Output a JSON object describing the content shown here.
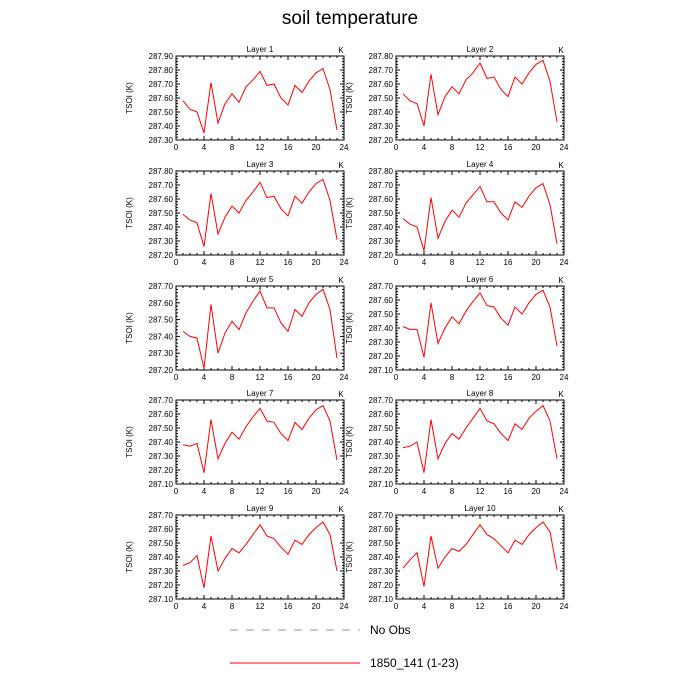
{
  "title": "soil temperature",
  "colors": {
    "model": "#ff0000",
    "obs": "#8c8cd9",
    "axis": "#000000"
  },
  "legend": {
    "placement": "bottom",
    "entries": [
      {
        "label": "No Obs",
        "style": "dashed",
        "color": "#8c8cd9"
      },
      {
        "label": "1850_141 (1-23)",
        "style": "solid",
        "color": "#ff0000"
      }
    ]
  },
  "chart_data": [
    {
      "type": "line",
      "title": "Layer 1",
      "ylabel": "TSOI  (K)",
      "unit": "K",
      "xlim": [
        0,
        24
      ],
      "xticks": [
        0,
        4,
        8,
        12,
        16,
        20,
        24
      ],
      "ylim": [
        287.3,
        287.9
      ],
      "yticks": [
        "287.30",
        "287.40",
        "287.50",
        "287.60",
        "287.70",
        "287.80",
        "287.90"
      ],
      "x": [
        1,
        2,
        3,
        4,
        5,
        6,
        7,
        8,
        9,
        10,
        11,
        12,
        13,
        14,
        15,
        16,
        17,
        18,
        19,
        20,
        21,
        22,
        23
      ],
      "series": [
        {
          "values": [
            287.58,
            287.52,
            287.5,
            287.35,
            287.71,
            287.42,
            287.56,
            287.63,
            287.57,
            287.68,
            287.73,
            287.79,
            287.69,
            287.7,
            287.6,
            287.55,
            287.69,
            287.64,
            287.72,
            287.78,
            287.81,
            287.66,
            287.37
          ]
        }
      ]
    },
    {
      "type": "line",
      "title": "Layer 2",
      "ylabel": "TSOI  (K)",
      "unit": "K",
      "xlim": [
        0,
        24
      ],
      "xticks": [
        0,
        4,
        8,
        12,
        16,
        20,
        24
      ],
      "ylim": [
        287.2,
        287.8
      ],
      "yticks": [
        "287.20",
        "287.30",
        "287.40",
        "287.50",
        "287.60",
        "287.70",
        "287.80"
      ],
      "x": [
        1,
        2,
        3,
        4,
        5,
        6,
        7,
        8,
        9,
        10,
        11,
        12,
        13,
        14,
        15,
        16,
        17,
        18,
        19,
        20,
        21,
        22,
        23
      ],
      "series": [
        {
          "values": [
            287.53,
            287.48,
            287.46,
            287.3,
            287.67,
            287.38,
            287.51,
            287.58,
            287.53,
            287.63,
            287.68,
            287.75,
            287.64,
            287.65,
            287.56,
            287.51,
            287.65,
            287.6,
            287.68,
            287.74,
            287.77,
            287.62,
            287.33
          ]
        }
      ]
    },
    {
      "type": "line",
      "title": "Layer 3",
      "ylabel": "TSOI  (K)",
      "unit": "K",
      "xlim": [
        0,
        24
      ],
      "xticks": [
        0,
        4,
        8,
        12,
        16,
        20,
        24
      ],
      "ylim": [
        287.2,
        287.8
      ],
      "yticks": [
        "287.20",
        "287.30",
        "287.40",
        "287.50",
        "287.60",
        "287.70",
        "287.80"
      ],
      "x": [
        1,
        2,
        3,
        4,
        5,
        6,
        7,
        8,
        9,
        10,
        11,
        12,
        13,
        14,
        15,
        16,
        17,
        18,
        19,
        20,
        21,
        22,
        23
      ],
      "series": [
        {
          "values": [
            287.49,
            287.45,
            287.43,
            287.26,
            287.64,
            287.35,
            287.47,
            287.55,
            287.5,
            287.59,
            287.65,
            287.72,
            287.61,
            287.62,
            287.53,
            287.48,
            287.62,
            287.57,
            287.65,
            287.71,
            287.74,
            287.59,
            287.31
          ]
        }
      ]
    },
    {
      "type": "line",
      "title": "Layer 4",
      "ylabel": "TSOI  (K)",
      "unit": "K",
      "xlim": [
        0,
        24
      ],
      "xticks": [
        0,
        4,
        8,
        12,
        16,
        20,
        24
      ],
      "ylim": [
        287.2,
        287.8
      ],
      "yticks": [
        "287.20",
        "287.30",
        "287.40",
        "287.50",
        "287.60",
        "287.70",
        "287.80"
      ],
      "x": [
        1,
        2,
        3,
        4,
        5,
        6,
        7,
        8,
        9,
        10,
        11,
        12,
        13,
        14,
        15,
        16,
        17,
        18,
        19,
        20,
        21,
        22,
        23
      ],
      "series": [
        {
          "values": [
            287.46,
            287.42,
            287.4,
            287.23,
            287.61,
            287.32,
            287.44,
            287.52,
            287.47,
            287.57,
            287.63,
            287.69,
            287.58,
            287.58,
            287.5,
            287.45,
            287.58,
            287.54,
            287.62,
            287.68,
            287.71,
            287.56,
            287.28
          ]
        }
      ]
    },
    {
      "type": "line",
      "title": "Layer 5",
      "ylabel": "TSOI  (K)",
      "unit": "K",
      "xlim": [
        0,
        24
      ],
      "xticks": [
        0,
        4,
        8,
        12,
        16,
        20,
        24
      ],
      "ylim": [
        287.2,
        287.7
      ],
      "yticks": [
        "287.20",
        "287.30",
        "287.40",
        "287.50",
        "287.60",
        "287.70"
      ],
      "x": [
        1,
        2,
        3,
        4,
        5,
        6,
        7,
        8,
        9,
        10,
        11,
        12,
        13,
        14,
        15,
        16,
        17,
        18,
        19,
        20,
        21,
        22,
        23
      ],
      "series": [
        {
          "values": [
            287.43,
            287.4,
            287.39,
            287.21,
            287.59,
            287.3,
            287.42,
            287.49,
            287.44,
            287.54,
            287.61,
            287.67,
            287.57,
            287.57,
            287.48,
            287.43,
            287.56,
            287.52,
            287.6,
            287.65,
            287.68,
            287.56,
            287.27
          ]
        }
      ]
    },
    {
      "type": "line",
      "title": "Layer 6",
      "ylabel": "TSOI  (K)",
      "unit": "K",
      "xlim": [
        0,
        24
      ],
      "xticks": [
        0,
        4,
        8,
        12,
        16,
        20,
        24
      ],
      "ylim": [
        287.1,
        287.7
      ],
      "yticks": [
        "287.10",
        "287.20",
        "287.30",
        "287.40",
        "287.50",
        "287.60",
        "287.70"
      ],
      "x": [
        1,
        2,
        3,
        4,
        5,
        6,
        7,
        8,
        9,
        10,
        11,
        12,
        13,
        14,
        15,
        16,
        17,
        18,
        19,
        20,
        21,
        22,
        23
      ],
      "series": [
        {
          "values": [
            287.41,
            287.39,
            287.39,
            287.19,
            287.58,
            287.29,
            287.4,
            287.48,
            287.43,
            287.52,
            287.59,
            287.65,
            287.56,
            287.55,
            287.47,
            287.42,
            287.55,
            287.5,
            287.58,
            287.64,
            287.67,
            287.55,
            287.27
          ]
        }
      ]
    },
    {
      "type": "line",
      "title": "Layer 7",
      "ylabel": "TSOI  (K)",
      "unit": "K",
      "xlim": [
        0,
        24
      ],
      "xticks": [
        0,
        4,
        8,
        12,
        16,
        20,
        24
      ],
      "ylim": [
        287.1,
        287.7
      ],
      "yticks": [
        "287.10",
        "287.20",
        "287.30",
        "287.40",
        "287.50",
        "287.60",
        "287.70"
      ],
      "x": [
        1,
        2,
        3,
        4,
        5,
        6,
        7,
        8,
        9,
        10,
        11,
        12,
        13,
        14,
        15,
        16,
        17,
        18,
        19,
        20,
        21,
        22,
        23
      ],
      "series": [
        {
          "values": [
            287.38,
            287.37,
            287.39,
            287.18,
            287.56,
            287.28,
            287.39,
            287.47,
            287.42,
            287.51,
            287.58,
            287.64,
            287.55,
            287.54,
            287.46,
            287.41,
            287.54,
            287.49,
            287.57,
            287.63,
            287.66,
            287.55,
            287.27
          ]
        }
      ]
    },
    {
      "type": "line",
      "title": "Layer 8",
      "ylabel": "TSOI  (K)",
      "unit": "K",
      "xlim": [
        0,
        24
      ],
      "xticks": [
        0,
        4,
        8,
        12,
        16,
        20,
        24
      ],
      "ylim": [
        287.1,
        287.7
      ],
      "yticks": [
        "287.10",
        "287.20",
        "287.30",
        "287.40",
        "287.50",
        "287.60",
        "287.70"
      ],
      "x": [
        1,
        2,
        3,
        4,
        5,
        6,
        7,
        8,
        9,
        10,
        11,
        12,
        13,
        14,
        15,
        16,
        17,
        18,
        19,
        20,
        21,
        22,
        23
      ],
      "series": [
        {
          "values": [
            287.36,
            287.37,
            287.4,
            287.18,
            287.56,
            287.28,
            287.39,
            287.46,
            287.42,
            287.5,
            287.57,
            287.64,
            287.55,
            287.53,
            287.46,
            287.41,
            287.53,
            287.49,
            287.57,
            287.62,
            287.66,
            287.55,
            287.28
          ]
        }
      ]
    },
    {
      "type": "line",
      "title": "Layer 9",
      "ylabel": "TSOI  (K)",
      "unit": "K",
      "xlim": [
        0,
        24
      ],
      "xticks": [
        0,
        4,
        8,
        12,
        16,
        20,
        24
      ],
      "ylim": [
        287.1,
        287.7
      ],
      "yticks": [
        "287.10",
        "287.20",
        "287.30",
        "287.40",
        "287.50",
        "287.60",
        "287.70"
      ],
      "x": [
        1,
        2,
        3,
        4,
        5,
        6,
        7,
        8,
        9,
        10,
        11,
        12,
        13,
        14,
        15,
        16,
        17,
        18,
        19,
        20,
        21,
        22,
        23
      ],
      "series": [
        {
          "values": [
            287.34,
            287.36,
            287.41,
            287.18,
            287.55,
            287.3,
            287.39,
            287.46,
            287.43,
            287.49,
            287.56,
            287.63,
            287.55,
            287.53,
            287.47,
            287.42,
            287.52,
            287.49,
            287.56,
            287.61,
            287.65,
            287.56,
            287.3
          ]
        }
      ]
    },
    {
      "type": "line",
      "title": "Layer 10",
      "ylabel": "TSOI  (K)",
      "unit": "K",
      "xlim": [
        0,
        24
      ],
      "xticks": [
        0,
        4,
        8,
        12,
        16,
        20,
        24
      ],
      "ylim": [
        287.1,
        287.7
      ],
      "yticks": [
        "287.10",
        "287.20",
        "287.30",
        "287.40",
        "287.50",
        "287.60",
        "287.70"
      ],
      "x": [
        1,
        2,
        3,
        4,
        5,
        6,
        7,
        8,
        9,
        10,
        11,
        12,
        13,
        14,
        15,
        16,
        17,
        18,
        19,
        20,
        21,
        22,
        23
      ],
      "series": [
        {
          "values": [
            287.32,
            287.38,
            287.43,
            287.19,
            287.55,
            287.32,
            287.4,
            287.46,
            287.44,
            287.49,
            287.56,
            287.63,
            287.56,
            287.53,
            287.48,
            287.43,
            287.52,
            287.49,
            287.56,
            287.61,
            287.65,
            287.58,
            287.31
          ]
        }
      ]
    }
  ]
}
